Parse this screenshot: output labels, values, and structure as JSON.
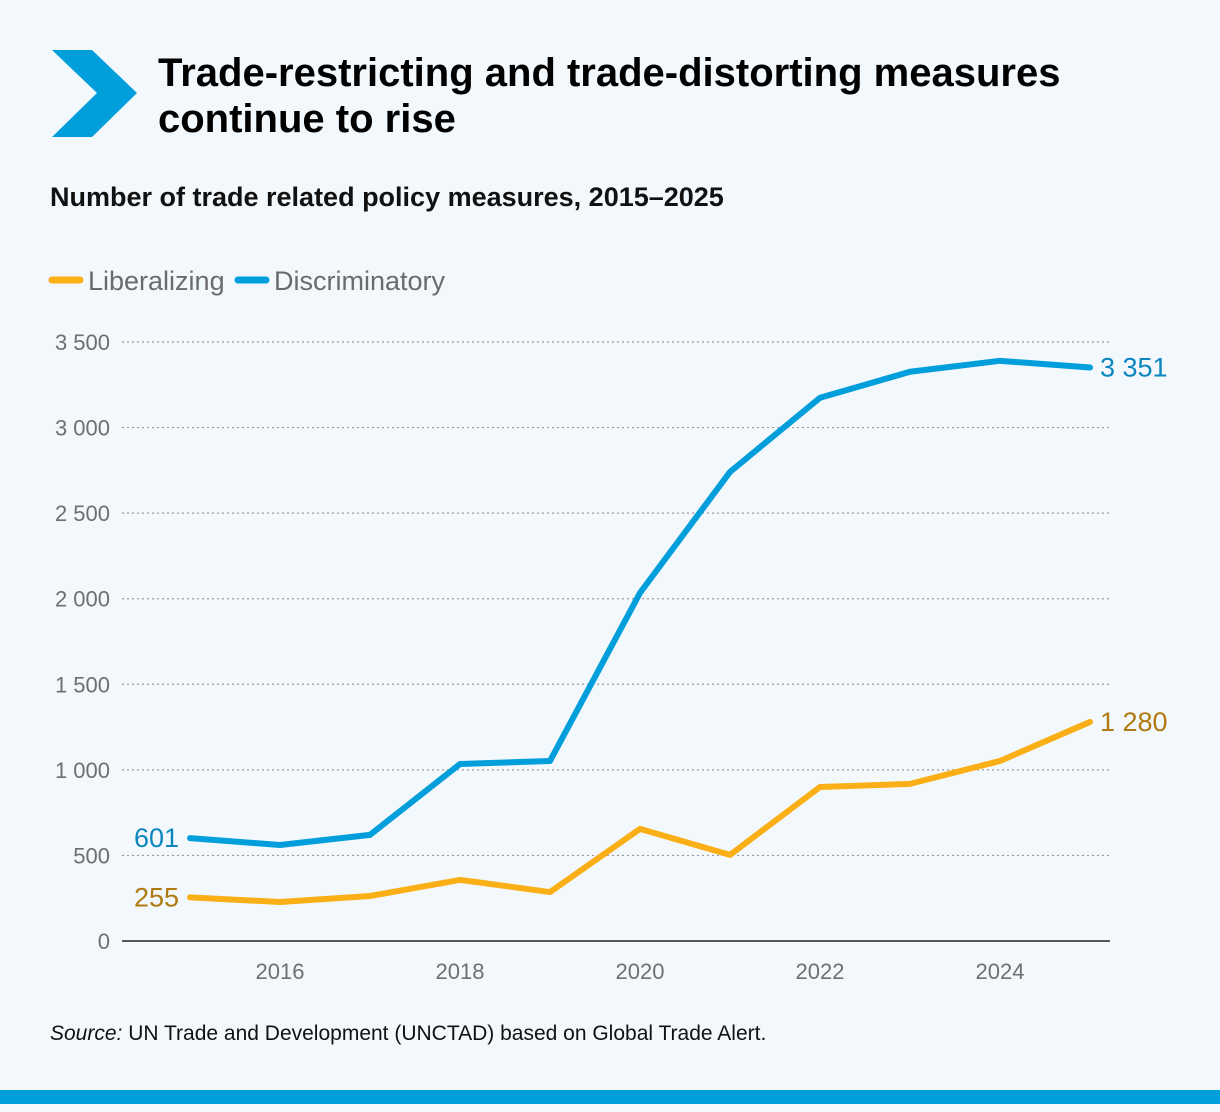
{
  "title": "Trade-restricting and trade-distorting measures continue to rise",
  "subtitle": "Number of trade related policy measures, 2015–2025",
  "source_label": "Source:",
  "source_text": " UN Trade and Development (UNCTAD) based on Global Trade Alert.",
  "logo_icon": "chevron-right-icon",
  "chart_data": {
    "type": "line",
    "x": [
      2015,
      2016,
      2017,
      2018,
      2019,
      2020,
      2021,
      2022,
      2023,
      2024,
      2025
    ],
    "xticks": [
      "2016",
      "2018",
      "2020",
      "2022",
      "2024"
    ],
    "yticks": [
      "0",
      "500",
      "1 000",
      "1 500",
      "2 000",
      "2 500",
      "3 000",
      "3 500"
    ],
    "ylim": [
      0,
      3500
    ],
    "grid": "horizontal dotted",
    "legend_placement": "top-left",
    "series": [
      {
        "name": "Liberalizing",
        "color": "#fbaf17",
        "label_color": "#b07a10",
        "values": [
          255,
          228,
          263,
          357,
          286,
          655,
          503,
          900,
          918,
          1052,
          1280
        ],
        "start_label": "255",
        "end_label": "1 280"
      },
      {
        "name": "Discriminatory",
        "color": "#009edb",
        "label_color": "#0a86bf",
        "values": [
          601,
          561,
          620,
          1034,
          1052,
          2034,
          2741,
          3174,
          3326,
          3390,
          3351
        ],
        "start_label": "601",
        "end_label": "3 351"
      }
    ]
  }
}
